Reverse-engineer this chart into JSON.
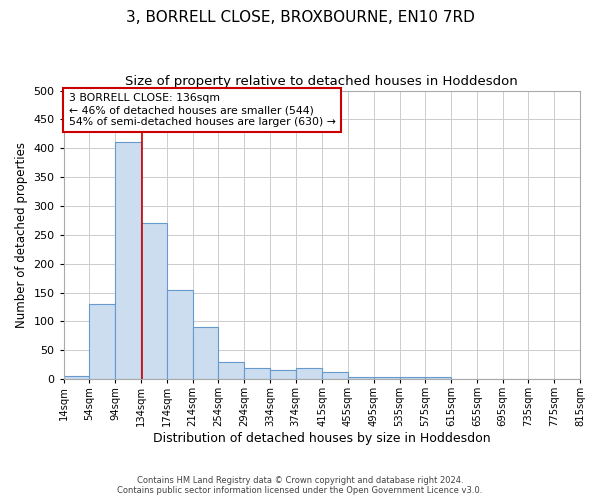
{
  "title": "3, BORRELL CLOSE, BROXBOURNE, EN10 7RD",
  "subtitle": "Size of property relative to detached houses in Hoddesdon",
  "xlabel": "Distribution of detached houses by size in Hoddesdon",
  "ylabel": "Number of detached properties",
  "footer_line1": "Contains HM Land Registry data © Crown copyright and database right 2024.",
  "footer_line2": "Contains public sector information licensed under the Open Government Licence v3.0.",
  "bar_edges": [
    14,
    54,
    94,
    134,
    174,
    214,
    254,
    294,
    334,
    374,
    415,
    455,
    495,
    535,
    575,
    615,
    655,
    695,
    735,
    775,
    815
  ],
  "bar_heights": [
    5,
    130,
    410,
    270,
    155,
    90,
    30,
    20,
    15,
    20,
    12,
    3,
    3,
    3,
    3,
    1,
    0,
    0,
    0,
    1,
    0
  ],
  "bar_color": "#ccddf0",
  "bar_edge_color": "#6699cc",
  "bar_linewidth": 0.8,
  "property_size": 136,
  "red_line_color": "#cc0000",
  "annotation_text": "3 BORRELL CLOSE: 136sqm\n← 46% of detached houses are smaller (544)\n54% of semi-detached houses are larger (630) →",
  "annotation_box_color": "#ffffff",
  "annotation_box_edgecolor": "#cc0000",
  "ylim": [
    0,
    500
  ],
  "yticks": [
    0,
    50,
    100,
    150,
    200,
    250,
    300,
    350,
    400,
    450,
    500
  ],
  "bg_color": "#ffffff",
  "grid_color": "#cccccc",
  "title_fontsize": 11,
  "subtitle_fontsize": 9.5,
  "xlabel_fontsize": 9,
  "ylabel_fontsize": 8.5,
  "annotation_fontsize": 7.8
}
